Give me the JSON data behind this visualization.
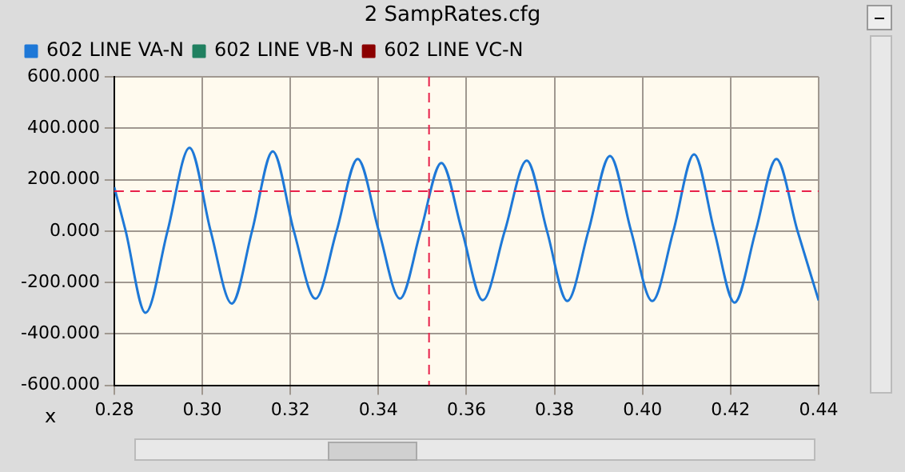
{
  "chart_data": {
    "type": "line",
    "title": "2  SampRates.cfg",
    "xlabel": "x",
    "xlim": [
      0.28,
      0.44
    ],
    "xticks": [
      {
        "value": 0.28,
        "label": "0.28"
      },
      {
        "value": 0.3,
        "label": "0.30"
      },
      {
        "value": 0.32,
        "label": "0.32"
      },
      {
        "value": 0.34,
        "label": "0.34"
      },
      {
        "value": 0.36,
        "label": "0.36"
      },
      {
        "value": 0.38,
        "label": "0.38"
      },
      {
        "value": 0.4,
        "label": "0.40"
      },
      {
        "value": 0.42,
        "label": "0.42"
      },
      {
        "value": 0.44,
        "label": "0.44"
      }
    ],
    "ylim": [
      -600,
      600
    ],
    "yticks": [
      {
        "value": -600,
        "label": "-600.000"
      },
      {
        "value": -400,
        "label": "-400.000"
      },
      {
        "value": -200,
        "label": "-200.000"
      },
      {
        "value": 0,
        "label": "0.000"
      },
      {
        "value": 200,
        "label": "200.000"
      },
      {
        "value": 400,
        "label": "400.000"
      },
      {
        "value": 600,
        "label": "600.000"
      }
    ],
    "grid": true,
    "legend": "top",
    "marker": "none",
    "line_style": "solid",
    "series": [
      {
        "name": "602 LINE VA-N",
        "color": "#1e78d7",
        "x": [
          0.28,
          0.2826,
          0.2871,
          0.2921,
          0.2971,
          0.3019,
          0.3067,
          0.3113,
          0.316,
          0.3208,
          0.3257,
          0.3305,
          0.3353,
          0.3401,
          0.3449,
          0.3496,
          0.3543,
          0.359,
          0.3637,
          0.3687,
          0.3737,
          0.3783,
          0.3829,
          0.3877,
          0.3926,
          0.3974,
          0.4022,
          0.407,
          0.4117,
          0.4163,
          0.4209,
          0.4257,
          0.4304,
          0.4352,
          0.44
        ],
        "values": [
          171,
          0,
          -318,
          0,
          324,
          0,
          -282,
          0,
          310,
          0,
          -263,
          0,
          280,
          0,
          -263,
          0,
          265,
          0,
          -269,
          0,
          274,
          0,
          -272,
          0,
          292,
          0,
          -272,
          0,
          298,
          0,
          -278,
          0,
          280,
          0,
          -270
        ]
      },
      {
        "name": "602 LINE VB-N",
        "color": "#208060"
      },
      {
        "name": "602 LINE VC-N",
        "color": "#8b0000"
      }
    ],
    "ref_lines": [
      {
        "axis": "y",
        "value": 155,
        "color": "#e8204a",
        "line_style": "dashed"
      },
      {
        "axis": "x",
        "value": 0.3515,
        "color": "#e8204a",
        "line_style": "dashed"
      }
    ]
  }
}
